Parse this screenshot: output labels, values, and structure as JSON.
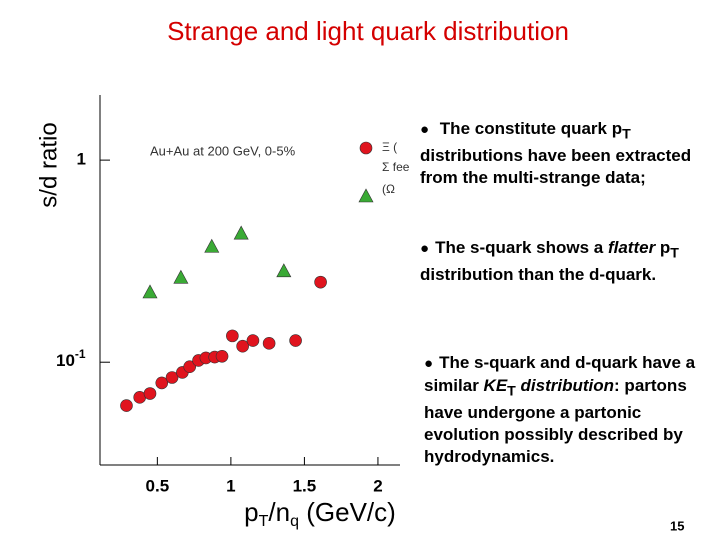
{
  "title": "Strange and light quark distribution",
  "page_number": "15",
  "bullets": [
    [
      "The constitute quark p",
      "T",
      " distributions have been extracted from the multi-strange data;"
    ],
    [
      "The s-quark shows a ",
      "flatter",
      " p",
      "T",
      " distribution than the d-quark."
    ],
    [
      "The s-quark and d-quark have a similar ",
      "KE",
      "T",
      " distribution",
      ": partons have undergone a partonic evolution possibly described by hydrodynamics."
    ]
  ],
  "chart_data": {
    "type": "scatter",
    "annotation": "Au+Au at 200 GeV, 0-5%",
    "ylabel": "s/d ratio",
    "xlabel": [
      "p",
      "T",
      "/n",
      "q",
      " (GeV/c)"
    ],
    "xlim": [
      0.11,
      2.15
    ],
    "xticks": [
      0.5,
      1,
      1.5,
      2
    ],
    "ylim": [
      0.031,
      2.1
    ],
    "log_y": true,
    "yticks": [
      1,
      {
        "value": 0.1,
        "label": "10",
        "label_exponent": "-1"
      }
    ],
    "legend_texts": [
      "Ξ (",
      "Σ fee",
      "(Ω"
    ],
    "series": [
      {
        "name": "Ξ (",
        "color": "#e0141e",
        "marker": "circle",
        "x": [
          0.29,
          0.38,
          0.45,
          0.53,
          0.6,
          0.67,
          0.72,
          0.78,
          0.83,
          0.89,
          0.94,
          1.01,
          1.08,
          1.15,
          1.26,
          1.44,
          1.61
        ],
        "values": [
          0.061,
          0.067,
          0.07,
          0.079,
          0.084,
          0.089,
          0.095,
          0.102,
          0.105,
          0.106,
          0.107,
          0.135,
          0.12,
          0.128,
          0.124,
          0.128,
          0.249
        ]
      },
      {
        "name": "(Ω",
        "color": "#3aaa35",
        "marker": "triangle",
        "x": [
          0.45,
          0.66,
          0.87,
          1.07,
          1.36
        ],
        "values": [
          0.22,
          0.26,
          0.37,
          0.43,
          0.28
        ]
      }
    ]
  }
}
